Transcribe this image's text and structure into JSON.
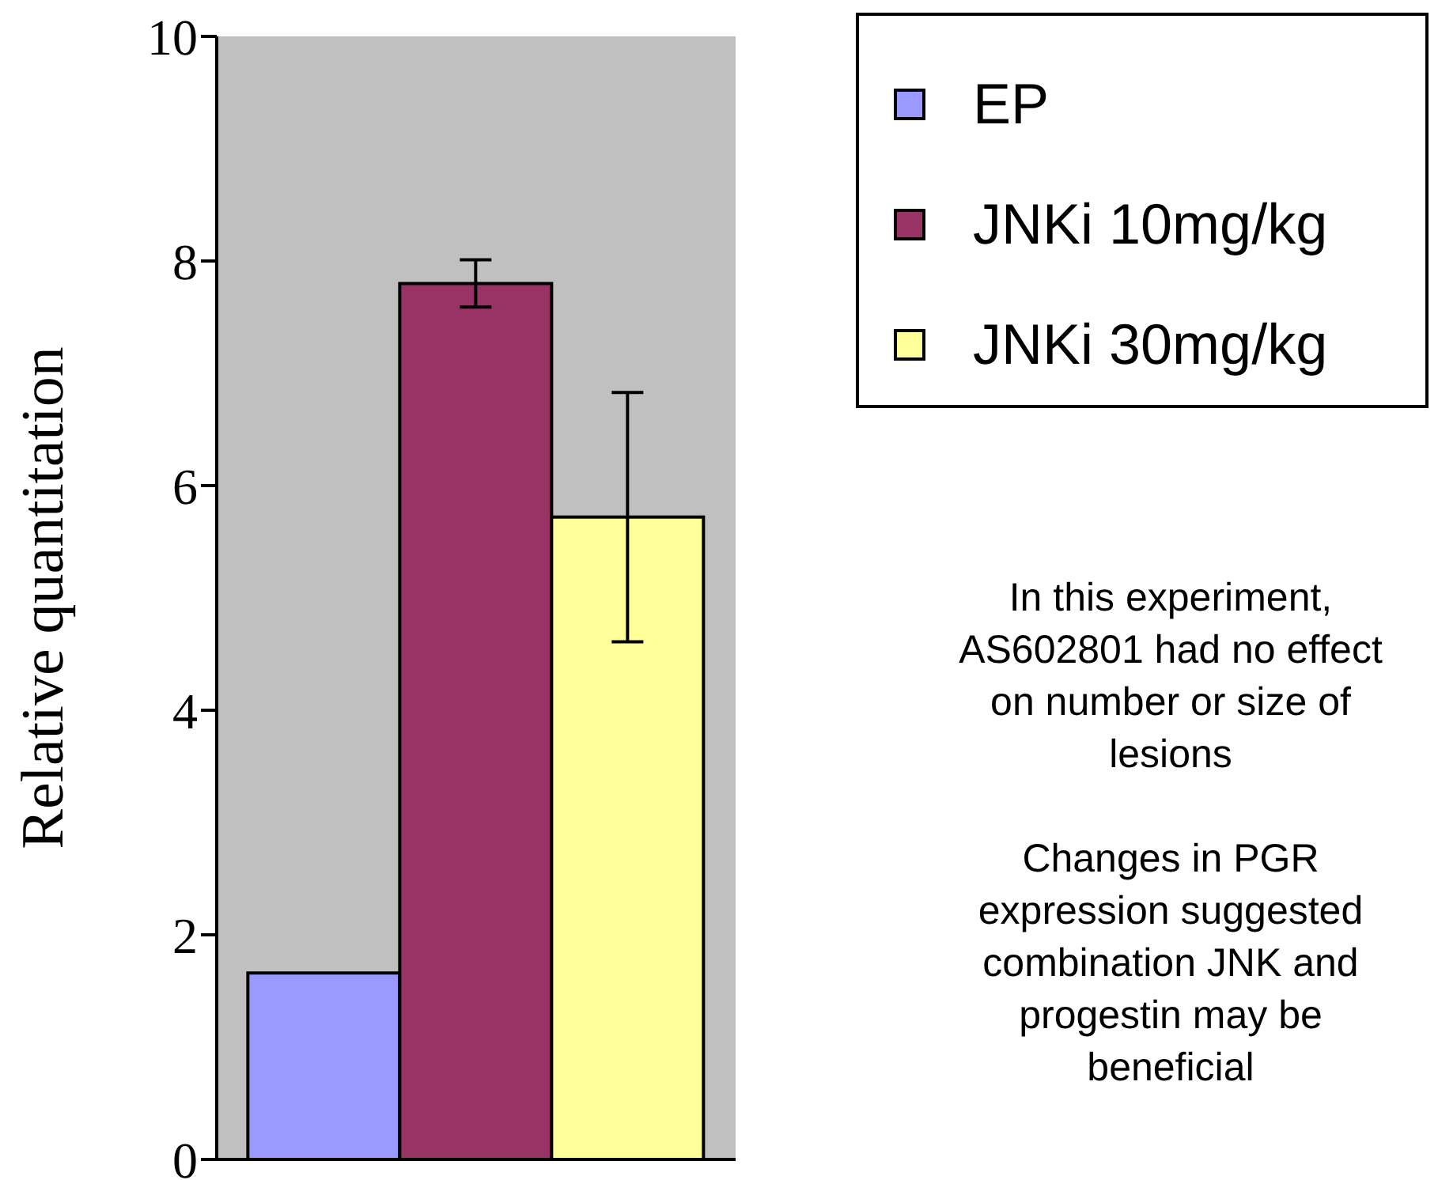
{
  "chart_data": {
    "type": "bar",
    "categories": [
      null
    ],
    "ylabel": "Relative quantitation",
    "ylim": [
      0,
      10
    ],
    "yticks": [
      0,
      2,
      4,
      6,
      8,
      10
    ],
    "grid": false,
    "legend": "top right",
    "series": [
      {
        "name": "EP",
        "color": "#9999ff",
        "values": [
          1.66
        ]
      },
      {
        "name": "JNKi 10mg/kg",
        "color": "#993366",
        "values": [
          7.8
        ],
        "errors": [
          0.21
        ]
      },
      {
        "name": "JNKi 30mg/kg",
        "color": "#ffff99",
        "values": [
          5.72
        ],
        "errors": [
          1.11
        ]
      }
    ],
    "annotations": [
      "In this experiment, AS602801 had no effect on number or size of lesions",
      "Changes in PGR expression suggested combination JNK and progestin may be beneficial"
    ]
  }
}
